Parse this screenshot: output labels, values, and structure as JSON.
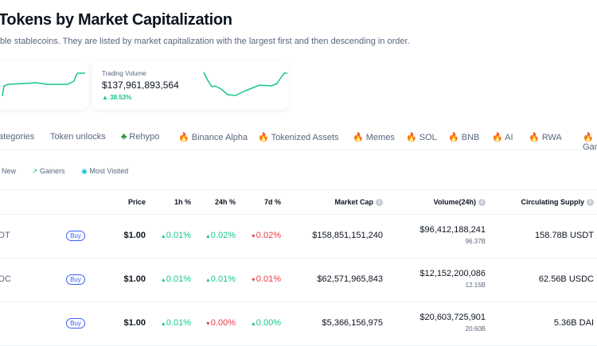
{
  "header": {
    "title": "Tokens by Market Capitalization",
    "subtitle": "ble stablecoins. They are listed by market capitalization with the largest first and then descending in order."
  },
  "cards": [
    {
      "label": "Trading Volume",
      "value": "$137,961,893,564",
      "change": "38.53%",
      "change_dir": "up"
    }
  ],
  "tabs": [
    {
      "label": "ategories"
    },
    {
      "label": "Token unlocks"
    },
    {
      "label": "Rehypo",
      "icon": "green-icon"
    },
    {
      "label": "Binance Alpha",
      "icon": "fire-icon"
    },
    {
      "label": "Tokenized Assets",
      "icon": "fire-icon"
    },
    {
      "label": "Memes",
      "icon": "fire-icon"
    },
    {
      "label": "SOL",
      "icon": "fire-icon"
    },
    {
      "label": "BNB",
      "icon": "fire-icon"
    },
    {
      "label": "AI",
      "icon": "fire-icon"
    },
    {
      "label": "RWA",
      "icon": "fire-icon"
    },
    {
      "label": "Gam",
      "icon": "fire-icon"
    }
  ],
  "filters": {
    "new": "New",
    "gainers": "Gainers",
    "most_visited": "Most Visited"
  },
  "columns": {
    "price": "Price",
    "h1": "1h %",
    "h24": "24h %",
    "d7": "7d %",
    "mcap": "Market Cap",
    "vol": "Volume(24h)",
    "supply": "Circulating Supply"
  },
  "buy_label": "Buy",
  "rows": [
    {
      "name": "DT",
      "price": "$1.00",
      "h1": "0.01%",
      "h1_dir": "up",
      "h24": "0.02%",
      "h24_dir": "up",
      "d7": "0.02%",
      "d7_dir": "down",
      "mcap": "$158,851,151,240",
      "vol": "$96,412,188,241",
      "vol_sub": "96.37B",
      "supply": "158.78B USDT"
    },
    {
      "name": "DC",
      "price": "$1.00",
      "h1": "0.01%",
      "h1_dir": "up",
      "h24": "0.01%",
      "h24_dir": "up",
      "d7": "0.01%",
      "d7_dir": "down",
      "mcap": "$62,571,965,843",
      "vol": "$12,152,200,086",
      "vol_sub": "12.15B",
      "supply": "62.56B USDC"
    },
    {
      "name": "",
      "price": "$1.00",
      "h1": "0.01%",
      "h1_dir": "up",
      "h24": "0.00%",
      "h24_dir": "down",
      "d7": "0.00%",
      "d7_dir": "up",
      "mcap": "$5,366,156,975",
      "vol": "$20,603,725,901",
      "vol_sub": "20.60B",
      "supply": "5.36B DAI"
    }
  ],
  "colors": {
    "up": "#16c784",
    "down": "#ea3943",
    "accent": "#3861fb"
  }
}
